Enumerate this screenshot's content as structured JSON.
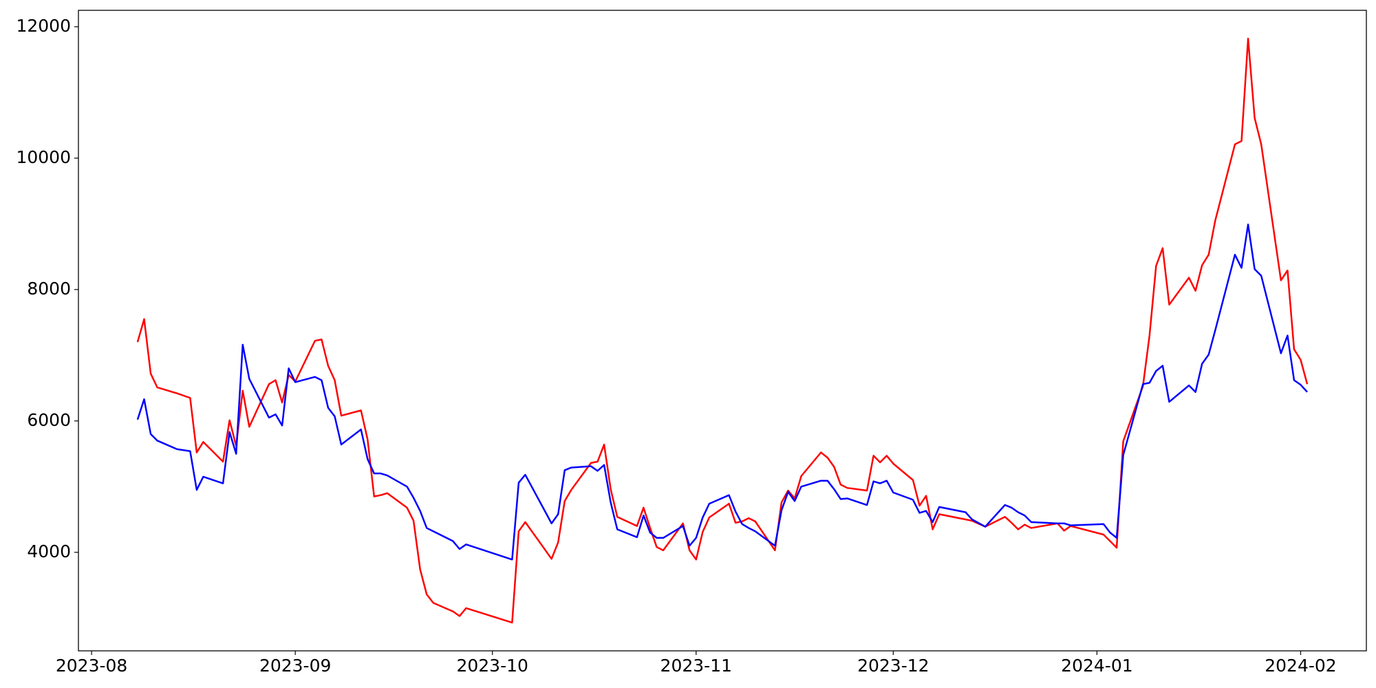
{
  "chart_data": {
    "type": "line",
    "x": [
      19577,
      19578,
      19579,
      19580,
      19583,
      19585,
      19586,
      19587,
      19590,
      19591,
      19592,
      19593,
      19594,
      19597,
      19598,
      19599,
      19600,
      19601,
      19604,
      19605,
      19606,
      19607,
      19608,
      19611,
      19612,
      19613,
      19614,
      19615,
      19618,
      19619,
      19620,
      19621,
      19622,
      19625,
      19626,
      19627,
      19634,
      19635,
      19636,
      19640,
      19641,
      19642,
      19643,
      19646,
      19647,
      19648,
      19649,
      19650,
      19653,
      19654,
      19655,
      19656,
      19657,
      19660,
      19661,
      19662,
      19663,
      19664,
      19667,
      19668,
      19669,
      19670,
      19671,
      19674,
      19675,
      19676,
      19677,
      19678,
      19681,
      19682,
      19683,
      19684,
      19685,
      19688,
      19689,
      19690,
      19691,
      19692,
      19695,
      19696,
      19697,
      19698,
      19699,
      19703,
      19704,
      19706,
      19709,
      19710,
      19711,
      19712,
      19713,
      19717,
      19718,
      19719,
      19724,
      19725,
      19726,
      19727,
      19730,
      19731,
      19732,
      19733,
      19734,
      19737,
      19738,
      19739,
      19740,
      19741,
      19744,
      19745,
      19746,
      19747,
      19748,
      19751,
      19752,
      19753,
      19754,
      19755
    ],
    "series": [
      {
        "color": "#ff0000",
        "values": [
          7200,
          7550,
          6720,
          6510,
          6420,
          6350,
          5520,
          5680,
          5380,
          6010,
          5620,
          6460,
          5910,
          6560,
          6620,
          6280,
          6700,
          6600,
          7220,
          7240,
          6840,
          6620,
          6080,
          6160,
          5720,
          4850,
          4870,
          4900,
          4680,
          4480,
          3740,
          3360,
          3230,
          3100,
          3030,
          3150,
          2930,
          4320,
          4460,
          3900,
          4150,
          4780,
          4950,
          5360,
          5380,
          5640,
          4960,
          4540,
          4400,
          4680,
          4370,
          4080,
          4030,
          4440,
          4030,
          3890,
          4310,
          4530,
          4740,
          4450,
          4470,
          4520,
          4470,
          4030,
          4760,
          4940,
          4820,
          5160,
          5520,
          5440,
          5300,
          5030,
          4980,
          4940,
          5470,
          5370,
          5470,
          5350,
          5100,
          4710,
          4860,
          4350,
          4580,
          4500,
          4480,
          4390,
          4540,
          4450,
          4350,
          4420,
          4370,
          4440,
          4330,
          4400,
          4270,
          4170,
          4070,
          5690,
          6530,
          7300,
          8360,
          8630,
          7770,
          8180,
          7980,
          8370,
          8530,
          9050,
          10210,
          10260,
          11820,
          10610,
          10210,
          8140,
          8290,
          7090,
          6930,
          6560
        ]
      },
      {
        "color": "#0000ff",
        "values": [
          6020,
          6330,
          5800,
          5700,
          5570,
          5540,
          4950,
          5150,
          5050,
          5830,
          5500,
          7160,
          6640,
          6050,
          6100,
          5930,
          6800,
          6590,
          6670,
          6620,
          6200,
          6070,
          5640,
          5870,
          5420,
          5200,
          5200,
          5170,
          5000,
          4830,
          4630,
          4370,
          4320,
          4170,
          4050,
          4120,
          3890,
          5060,
          5180,
          4440,
          4580,
          5250,
          5290,
          5310,
          5240,
          5330,
          4760,
          4350,
          4230,
          4560,
          4300,
          4220,
          4220,
          4400,
          4100,
          4220,
          4530,
          4740,
          4870,
          4620,
          4430,
          4370,
          4320,
          4100,
          4640,
          4920,
          4780,
          5000,
          5090,
          5090,
          4960,
          4810,
          4820,
          4720,
          5080,
          5050,
          5090,
          4910,
          4800,
          4600,
          4630,
          4460,
          4690,
          4610,
          4500,
          4390,
          4720,
          4680,
          4610,
          4560,
          4460,
          4440,
          4440,
          4410,
          4430,
          4300,
          4220,
          5480,
          6560,
          6580,
          6760,
          6840,
          6290,
          6540,
          6440,
          6870,
          7010,
          7380,
          8530,
          8330,
          8990,
          8310,
          8210,
          7030,
          7300,
          6620,
          6550,
          6440
        ]
      }
    ],
    "xlim": [
      19568,
      19764
    ],
    "xticks": [
      {
        "value": 19570,
        "label": "2023-08"
      },
      {
        "value": 19601,
        "label": "2023-09"
      },
      {
        "value": 19631,
        "label": "2023-10"
      },
      {
        "value": 19662,
        "label": "2023-11"
      },
      {
        "value": 19692,
        "label": "2023-12"
      },
      {
        "value": 19723,
        "label": "2024-01"
      },
      {
        "value": 19754,
        "label": "2024-02"
      }
    ],
    "ylim": [
      2500,
      12250
    ],
    "yticks": [
      4000,
      6000,
      8000,
      10000,
      12000
    ]
  }
}
